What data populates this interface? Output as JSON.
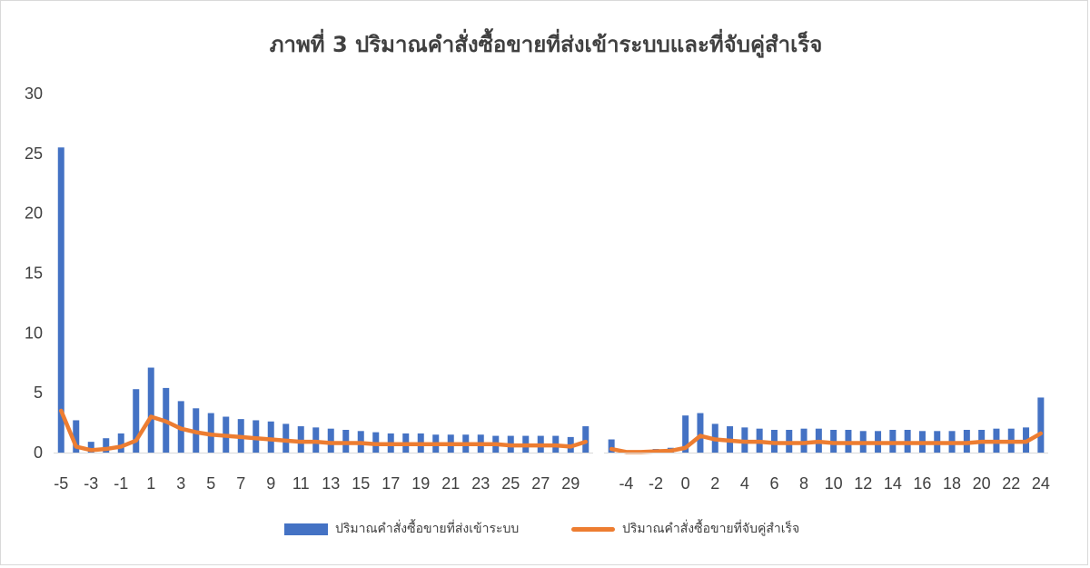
{
  "chart_data": {
    "type": "bar",
    "title": "ภาพที่ 3 ปริมาณคำสั่งซื้อขายที่ส่งเข้าระบบและที่จับคู่สำเร็จ",
    "ylim": [
      0,
      30
    ],
    "yticks": [
      "0",
      "5",
      "10",
      "15",
      "20",
      "25",
      "30"
    ],
    "grid": false,
    "legend_position": "bottom",
    "groups": [
      {
        "x": [
          -5,
          -4,
          -3,
          -2,
          -1,
          0,
          1,
          2,
          3,
          4,
          5,
          6,
          7,
          8,
          9,
          10,
          11,
          12,
          13,
          14,
          15,
          16,
          17,
          18,
          19,
          20,
          21,
          22,
          23,
          24,
          25,
          26,
          27,
          28,
          29,
          30
        ],
        "xticks": [
          "-5",
          "-3",
          "-1",
          "1",
          "3",
          "5",
          "7",
          "9",
          "11",
          "13",
          "15",
          "17",
          "19",
          "21",
          "23",
          "25",
          "27",
          "29"
        ]
      },
      {
        "x": [
          -5,
          -4,
          -3,
          -2,
          -1,
          0,
          1,
          2,
          3,
          4,
          5,
          6,
          7,
          8,
          9,
          10,
          11,
          12,
          13,
          14,
          15,
          16,
          17,
          18,
          19,
          20,
          21,
          22,
          23,
          24
        ],
        "xticks": [
          "-4",
          "-2",
          "0",
          "2",
          "4",
          "6",
          "8",
          "10",
          "12",
          "14",
          "16",
          "18",
          "20",
          "22",
          "24"
        ]
      }
    ],
    "series": [
      {
        "name": "ปริมาณคำสั่งซื้อขายที่ส่งเข้าระบบ",
        "kind": "bar",
        "color": "#4472c4",
        "values": [
          [
            25.5,
            2.7,
            0.9,
            1.2,
            1.6,
            5.3,
            7.1,
            5.4,
            4.3,
            3.7,
            3.3,
            3.0,
            2.8,
            2.7,
            2.6,
            2.4,
            2.2,
            2.1,
            2.0,
            1.9,
            1.8,
            1.7,
            1.6,
            1.6,
            1.6,
            1.5,
            1.5,
            1.5,
            1.5,
            1.4,
            1.4,
            1.4,
            1.4,
            1.4,
            1.3,
            2.2
          ],
          [
            1.1,
            0.1,
            0.1,
            0.3,
            0.4,
            3.1,
            3.3,
            2.4,
            2.2,
            2.1,
            2.0,
            1.9,
            1.9,
            2.0,
            2.0,
            1.9,
            1.9,
            1.8,
            1.8,
            1.9,
            1.9,
            1.8,
            1.8,
            1.8,
            1.9,
            1.9,
            2.0,
            2.0,
            2.1,
            4.6
          ]
        ]
      },
      {
        "name": "ปริมาณคำสั่งซื้อขายที่จับคู่สำเร็จ",
        "kind": "line",
        "color": "#ed7d31",
        "values": [
          [
            3.5,
            0.5,
            0.2,
            0.3,
            0.5,
            1.0,
            3.0,
            2.6,
            2.0,
            1.7,
            1.5,
            1.4,
            1.3,
            1.2,
            1.1,
            1.0,
            0.9,
            0.9,
            0.8,
            0.8,
            0.8,
            0.7,
            0.7,
            0.7,
            0.7,
            0.7,
            0.7,
            0.7,
            0.7,
            0.7,
            0.6,
            0.6,
            0.6,
            0.6,
            0.5,
            0.9
          ],
          [
            0.3,
            0.05,
            0.05,
            0.1,
            0.15,
            0.4,
            1.4,
            1.1,
            1.0,
            0.9,
            0.9,
            0.8,
            0.8,
            0.8,
            0.9,
            0.8,
            0.8,
            0.8,
            0.8,
            0.8,
            0.8,
            0.8,
            0.8,
            0.8,
            0.8,
            0.9,
            0.9,
            0.9,
            0.9,
            1.6
          ]
        ]
      }
    ]
  }
}
